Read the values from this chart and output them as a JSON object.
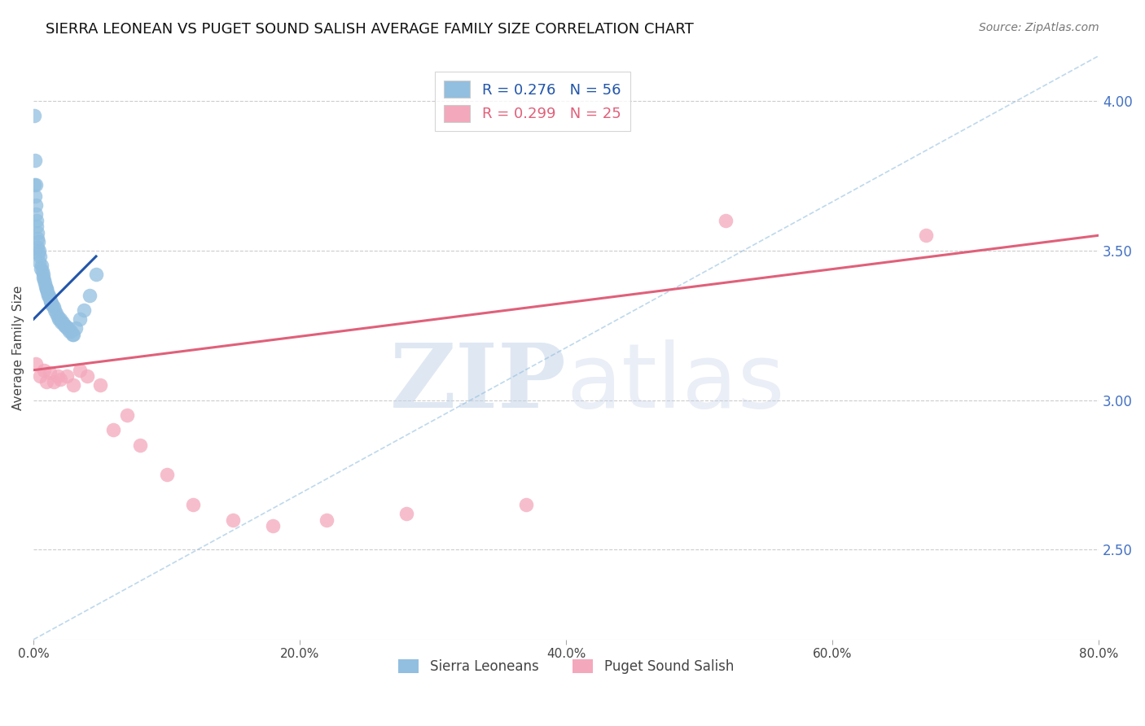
{
  "title": "SIERRA LEONEAN VS PUGET SOUND SALISH AVERAGE FAMILY SIZE CORRELATION CHART",
  "source": "Source: ZipAtlas.com",
  "ylabel": "Average Family Size",
  "xlim": [
    0.0,
    80.0
  ],
  "ylim": [
    2.2,
    4.15
  ],
  "yticks_right": [
    2.5,
    3.0,
    3.5,
    4.0
  ],
  "xticks": [
    0.0,
    20.0,
    40.0,
    60.0,
    80.0
  ],
  "xtick_labels": [
    "0.0%",
    "20.0%",
    "40.0%",
    "60.0%",
    "80.0%"
  ],
  "legend_blue_label": "R = 0.276   N = 56",
  "legend_pink_label": "R = 0.299   N = 25",
  "legend1_label": "Sierra Leoneans",
  "legend2_label": "Puget Sound Salish",
  "blue_color": "#92bfe0",
  "pink_color": "#f4a8bc",
  "blue_line_color": "#2255aa",
  "pink_line_color": "#e0607a",
  "right_tick_color": "#4472c4",
  "title_fontsize": 13,
  "axis_label_fontsize": 11,
  "tick_fontsize": 11,
  "blue_scatter_x": [
    0.05,
    0.1,
    0.15,
    0.2,
    0.25,
    0.3,
    0.35,
    0.4,
    0.5,
    0.6,
    0.7,
    0.8,
    0.9,
    1.0,
    1.1,
    1.2,
    1.3,
    1.4,
    1.5,
    1.6,
    1.7,
    1.8,
    1.9,
    2.0,
    2.1,
    2.2,
    2.3,
    2.4,
    2.5,
    2.6,
    2.7,
    2.8,
    2.9,
    3.0,
    3.2,
    3.5,
    3.8,
    4.2,
    4.7,
    0.08,
    0.12,
    0.18,
    0.22,
    0.28,
    0.32,
    0.38,
    0.45,
    0.55,
    0.65,
    0.75,
    0.85,
    0.95,
    1.05,
    1.15,
    1.25,
    1.35
  ],
  "blue_scatter_y": [
    3.95,
    3.8,
    3.72,
    3.65,
    3.6,
    3.56,
    3.53,
    3.5,
    3.48,
    3.45,
    3.42,
    3.4,
    3.38,
    3.37,
    3.35,
    3.34,
    3.33,
    3.32,
    3.31,
    3.3,
    3.29,
    3.28,
    3.27,
    3.27,
    3.26,
    3.26,
    3.25,
    3.25,
    3.24,
    3.24,
    3.23,
    3.23,
    3.22,
    3.22,
    3.24,
    3.27,
    3.3,
    3.35,
    3.42,
    3.72,
    3.68,
    3.62,
    3.58,
    3.54,
    3.51,
    3.49,
    3.46,
    3.44,
    3.43,
    3.41,
    3.39,
    3.37,
    3.36,
    3.35,
    3.33,
    3.32
  ],
  "pink_scatter_x": [
    0.2,
    0.5,
    0.8,
    1.0,
    1.2,
    1.5,
    1.8,
    2.0,
    2.5,
    3.0,
    3.5,
    4.0,
    5.0,
    6.0,
    7.0,
    8.0,
    10.0,
    12.0,
    15.0,
    18.0,
    22.0,
    28.0,
    37.0,
    52.0,
    67.0
  ],
  "pink_scatter_y": [
    3.12,
    3.08,
    3.1,
    3.06,
    3.09,
    3.06,
    3.08,
    3.07,
    3.08,
    3.05,
    3.1,
    3.08,
    3.05,
    2.9,
    2.95,
    2.85,
    2.75,
    2.65,
    2.6,
    2.58,
    2.6,
    2.62,
    2.65,
    3.6,
    3.55
  ],
  "blue_trendline_x": [
    0.0,
    4.7
  ],
  "blue_trendline_y": [
    3.27,
    3.48
  ],
  "pink_trendline_x": [
    0.0,
    80.0
  ],
  "pink_trendline_y": [
    3.1,
    3.55
  ],
  "diag_line_x": [
    0.0,
    80.0
  ],
  "diag_line_y": [
    2.2,
    4.15
  ],
  "watermark_zip": "ZIP",
  "watermark_atlas": "atlas",
  "background_color": "#ffffff",
  "grid_color": "#cccccc"
}
